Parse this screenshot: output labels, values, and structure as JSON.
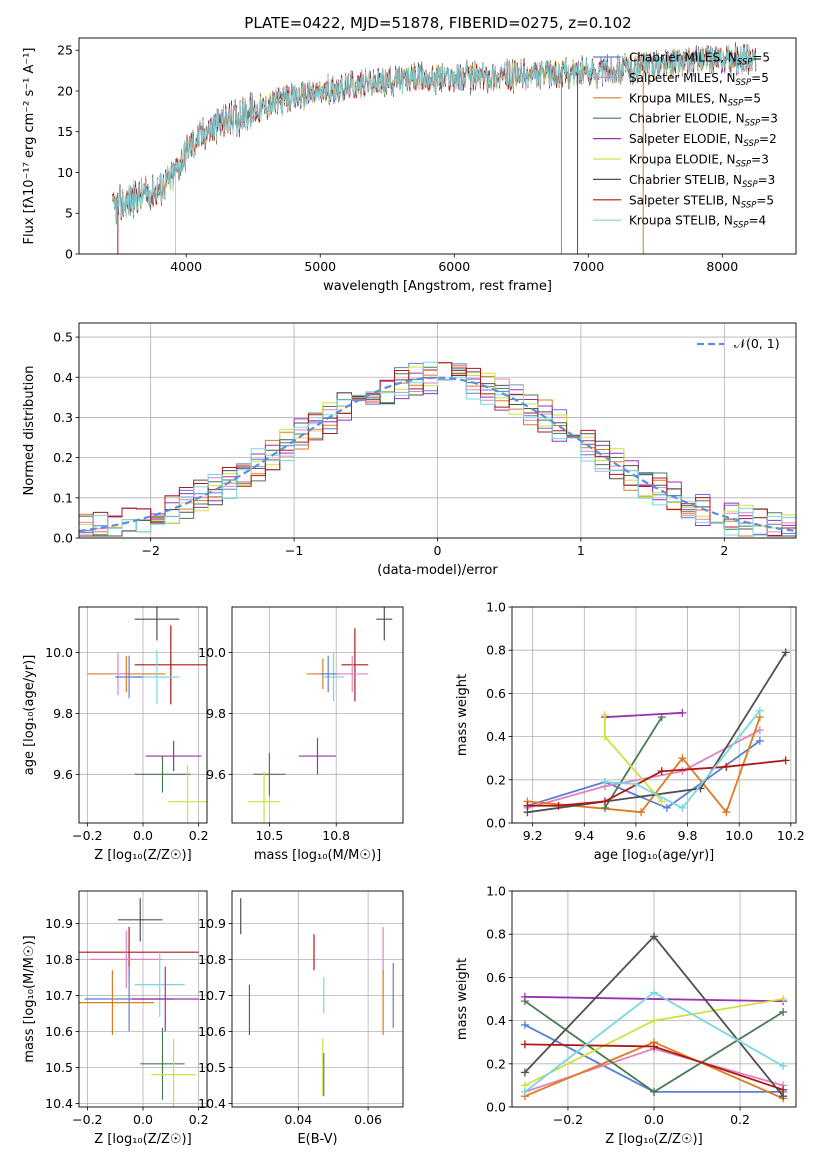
{
  "figure": {
    "title": "PLATE=0422, MJD=51878, FIBERID=0275, z=0.102"
  },
  "colors": {
    "chabrier_miles": "#5b7fd6",
    "salpeter_miles": "#e084c0",
    "kroupa_miles": "#e07a20",
    "chabrier_elodie": "#4a7a50",
    "salpeter_elodie": "#9b30b0",
    "kroupa_elodie": "#d0e040",
    "chabrier_stelib": "#505050",
    "salpeter_stelib": "#b01818",
    "kroupa_stelib": "#78d8e0",
    "normal": "#5b8fe0"
  },
  "chart_data": [
    {
      "id": "spectrum",
      "type": "line",
      "xlabel": "wavelength [Angstrom, rest frame]",
      "ylabel": "Flux [fλ10⁻¹⁷ erg cm⁻² s⁻¹ A⁻¹]",
      "xlim": [
        3200,
        8550
      ],
      "ylim": [
        0,
        26.5
      ],
      "xticks": [
        4000,
        5000,
        6000,
        7000,
        8000
      ],
      "yticks": [
        0,
        5,
        10,
        15,
        20,
        25
      ],
      "grid": false,
      "legend_position": "right",
      "continuum": {
        "x": [
          3450,
          3600,
          3800,
          3900,
          4000,
          4100,
          4300,
          4500,
          4700,
          4900,
          5100,
          5300,
          5500,
          5700,
          5900,
          6100,
          6300,
          6500,
          6700,
          6900,
          7100,
          7300,
          7500,
          7700,
          7900,
          8100,
          8250
        ],
        "y": [
          5.5,
          6.8,
          8.0,
          9.5,
          12.5,
          14.5,
          16.5,
          17.5,
          18.8,
          19.5,
          20.2,
          20.8,
          21.2,
          21.5,
          21.6,
          21.7,
          21.8,
          21.9,
          22.0,
          22.2,
          22.5,
          22.8,
          23.2,
          23.6,
          23.8,
          23.9,
          24.0
        ]
      },
      "series": [
        {
          "name": "Chabrier MILES, N_SSP=5",
          "label": "Chabrier MILES, N",
          "sub": "SSP",
          "suffix": "=5",
          "color_key": "chabrier_miles"
        },
        {
          "name": "Salpeter MILES, N_SSP=5",
          "label": "Salpeter MILES, N",
          "sub": "SSP",
          "suffix": "=5",
          "color_key": "salpeter_miles"
        },
        {
          "name": "Kroupa MILES, N_SSP=5",
          "label": "Kroupa MILES, N",
          "sub": "SSP",
          "suffix": "=5",
          "color_key": "kroupa_miles"
        },
        {
          "name": "Chabrier ELODIE, N_SSP=3",
          "label": "Chabrier ELODIE, N",
          "sub": "SSP",
          "suffix": "=3",
          "color_key": "chabrier_elodie"
        },
        {
          "name": "Salpeter ELODIE, N_SSP=2",
          "label": "Salpeter ELODIE, N",
          "sub": "SSP",
          "suffix": "=2",
          "color_key": "salpeter_elodie"
        },
        {
          "name": "Kroupa ELODIE, N_SSP=3",
          "label": "Kroupa ELODIE, N",
          "sub": "SSP",
          "suffix": "=3",
          "color_key": "kroupa_elodie"
        },
        {
          "name": "Chabrier STELIB, N_SSP=3",
          "label": "Chabrier STELIB, N",
          "sub": "SSP",
          "suffix": "=3",
          "color_key": "chabrier_stelib"
        },
        {
          "name": "Salpeter STELIB, N_SSP=5",
          "label": "Salpeter STELIB, N",
          "sub": "SSP",
          "suffix": "=5",
          "color_key": "salpeter_stelib"
        },
        {
          "name": "Kroupa STELIB, N_SSP=4",
          "label": "Kroupa STELIB, N",
          "sub": "SSP",
          "suffix": "=4",
          "color_key": "kroupa_stelib"
        }
      ],
      "drops": [
        {
          "x": 3490,
          "color_key": "salpeter_stelib"
        },
        {
          "x": 3920,
          "color_key": "kroupa_elodie"
        },
        {
          "x": 6800,
          "color_key": "kroupa_miles"
        },
        {
          "x": 6920,
          "color_key": "chabrier_stelib"
        },
        {
          "x": 7410,
          "color_key": "kroupa_miles"
        }
      ]
    },
    {
      "id": "residuals",
      "type": "bar",
      "xlabel": "(data-model)/error",
      "ylabel": "Normed distribution",
      "xlim": [
        -2.5,
        2.5
      ],
      "ylim": [
        0,
        0.535
      ],
      "xticks": [
        -2,
        -1,
        0,
        1,
        2
      ],
      "yticks": [
        0.0,
        0.1,
        0.2,
        0.3,
        0.4,
        0.5
      ],
      "grid": true,
      "bin_width": 0.1,
      "legend_position": "top-right",
      "reference_curve": {
        "name": "N(0,1)",
        "label": "𝒩(0, 1)",
        "mean": 0,
        "sigma": 1,
        "style": "dashed"
      }
    },
    {
      "id": "age-vs-z",
      "type": "scatter",
      "xlabel": "Z [log₁₀(Z/Z☉)]",
      "ylabel": "age  [log₁₀(age/yr)]",
      "xlim": [
        -0.23,
        0.23
      ],
      "ylim": [
        9.44,
        10.15
      ],
      "xticks": [
        -0.2,
        0.0,
        0.2
      ],
      "yticks": [
        9.6,
        9.8,
        10.0
      ],
      "grid": true,
      "points": [
        {
          "color_key": "chabrier_stelib",
          "x": 0.05,
          "xerr": 0.08,
          "y": 10.11,
          "yerr": 0.07
        },
        {
          "color_key": "salpeter_stelib",
          "x": 0.1,
          "xerr": 0.13,
          "y": 9.96,
          "yerr": 0.13
        },
        {
          "color_key": "kroupa_miles",
          "x": -0.06,
          "xerr": 0.14,
          "y": 9.93,
          "yerr": 0.06
        },
        {
          "color_key": "salpeter_miles",
          "x": -0.09,
          "xerr": 0.03,
          "y": 9.93,
          "yerr": 0.07
        },
        {
          "color_key": "kroupa_stelib",
          "x": 0.05,
          "xerr": 0.08,
          "y": 9.92,
          "yerr": 0.09
        },
        {
          "color_key": "chabrier_miles",
          "x": -0.05,
          "xerr": 0.05,
          "y": 9.92,
          "yerr": 0.07
        },
        {
          "color_key": "salpeter_elodie",
          "x": 0.11,
          "xerr": 0.1,
          "y": 9.66,
          "yerr": 0.05
        },
        {
          "color_key": "chabrier_elodie",
          "x": 0.07,
          "xerr": 0.1,
          "y": 9.6,
          "yerr": 0.06
        },
        {
          "color_key": "kroupa_elodie",
          "x": 0.16,
          "xerr": 0.07,
          "y": 9.51,
          "yerr": 0.12
        }
      ]
    },
    {
      "id": "age-vs-mass",
      "type": "scatter",
      "xlabel": "mass [log₁₀(M/M☉)]",
      "ylabel": "",
      "xlim": [
        10.36,
        11.0
      ],
      "ylim": [
        9.44,
        10.15
      ],
      "xticks": [
        10.5,
        10.75
      ],
      "yticks": [
        9.6,
        9.8,
        10.0
      ],
      "grid": true,
      "points": [
        {
          "color_key": "chabrier_stelib",
          "x": 10.93,
          "xerr": 0.03,
          "y": 10.11,
          "yerr": 0.07
        },
        {
          "color_key": "salpeter_stelib",
          "x": 10.82,
          "xerr": 0.05,
          "y": 9.96,
          "yerr": 0.12
        },
        {
          "color_key": "kroupa_miles",
          "x": 10.7,
          "xerr": 0.06,
          "y": 9.93,
          "yerr": 0.05
        },
        {
          "color_key": "salpeter_miles",
          "x": 10.81,
          "xerr": 0.06,
          "y": 9.93,
          "yerr": 0.06
        },
        {
          "color_key": "kroupa_stelib",
          "x": 10.74,
          "xerr": 0.04,
          "y": 9.92,
          "yerr": 0.08
        },
        {
          "color_key": "chabrier_miles",
          "x": 10.72,
          "xerr": 0.03,
          "y": 9.93,
          "yerr": 0.06
        },
        {
          "color_key": "salpeter_elodie",
          "x": 10.68,
          "xerr": 0.07,
          "y": 9.66,
          "yerr": 0.06
        },
        {
          "color_key": "chabrier_elodie",
          "x": 10.5,
          "xerr": 0.06,
          "y": 9.6,
          "yerr": 0.07
        },
        {
          "color_key": "kroupa_elodie",
          "x": 10.48,
          "xerr": 0.06,
          "y": 9.51,
          "yerr": 0.1
        }
      ]
    },
    {
      "id": "weight-vs-age",
      "type": "line",
      "xlabel": "age  [log₁₀(age/yr)]",
      "ylabel": "mass weight",
      "xlim": [
        9.12,
        10.22
      ],
      "ylim": [
        0,
        1.0
      ],
      "xticks": [
        9.2,
        9.4,
        9.6,
        9.8,
        10.0,
        10.2
      ],
      "yticks": [
        0.0,
        0.2,
        0.4,
        0.6,
        0.8,
        1.0
      ],
      "grid": true,
      "series": [
        {
          "color_key": "chabrier_miles",
          "x": [
            9.18,
            9.48,
            9.72,
            10.08
          ],
          "y": [
            0.08,
            0.19,
            0.07,
            0.38
          ]
        },
        {
          "color_key": "salpeter_miles",
          "x": [
            9.18,
            9.48,
            9.78,
            10.08
          ],
          "y": [
            0.07,
            0.17,
            0.24,
            0.43
          ]
        },
        {
          "color_key": "kroupa_miles",
          "x": [
            9.18,
            9.62,
            9.78,
            9.95,
            10.08
          ],
          "y": [
            0.1,
            0.05,
            0.3,
            0.05,
            0.49
          ]
        },
        {
          "color_key": "chabrier_elodie",
          "x": [
            9.48,
            9.7
          ],
          "y": [
            0.07,
            0.49
          ]
        },
        {
          "color_key": "salpeter_elodie",
          "x": [
            9.48,
            9.78
          ],
          "y": [
            0.49,
            0.51
          ]
        },
        {
          "color_key": "kroupa_elodie",
          "x": [
            9.48,
            9.48,
            9.7
          ],
          "y": [
            0.5,
            0.4,
            0.1
          ]
        },
        {
          "color_key": "chabrier_stelib",
          "x": [
            9.18,
            9.85,
            10.18
          ],
          "y": [
            0.05,
            0.16,
            0.79
          ]
        },
        {
          "color_key": "salpeter_stelib",
          "x": [
            9.18,
            9.3,
            9.48,
            9.7,
            9.95,
            10.18
          ],
          "y": [
            0.08,
            0.08,
            0.1,
            0.24,
            0.26,
            0.29
          ]
        },
        {
          "color_key": "kroupa_stelib",
          "x": [
            9.48,
            9.6,
            9.78,
            10.08
          ],
          "y": [
            0.19,
            0.18,
            0.07,
            0.52
          ]
        }
      ]
    },
    {
      "id": "mass-vs-z",
      "type": "scatter",
      "xlabel": "Z [log₁₀(Z/Z☉)]",
      "ylabel": "mass [log₁₀(M/M☉)]",
      "xlim": [
        -0.23,
        0.23
      ],
      "ylim": [
        10.39,
        10.99
      ],
      "xticks": [
        -0.2,
        0.0,
        0.2
      ],
      "yticks": [
        10.4,
        10.5,
        10.6,
        10.7,
        10.8,
        10.9
      ],
      "grid": true,
      "points": [
        {
          "color_key": "chabrier_stelib",
          "x": -0.01,
          "xerr": 0.08,
          "y": 10.91,
          "yerr": 0.06
        },
        {
          "color_key": "salpeter_stelib",
          "x": -0.05,
          "xerr": 0.25,
          "y": 10.82,
          "yerr": 0.07
        },
        {
          "color_key": "salpeter_miles",
          "x": -0.06,
          "xerr": 0.13,
          "y": 10.8,
          "yerr": 0.08
        },
        {
          "color_key": "kroupa_stelib",
          "x": 0.06,
          "xerr": 0.09,
          "y": 10.73,
          "yerr": 0.09
        },
        {
          "color_key": "chabrier_miles",
          "x": -0.05,
          "xerr": 0.16,
          "y": 10.69,
          "yerr": 0.09
        },
        {
          "color_key": "salpeter_elodie",
          "x": 0.08,
          "xerr": 0.12,
          "y": 10.69,
          "yerr": 0.09
        },
        {
          "color_key": "kroupa_miles",
          "x": -0.11,
          "xerr": 0.15,
          "y": 10.68,
          "yerr": 0.09
        },
        {
          "color_key": "chabrier_elodie",
          "x": 0.07,
          "xerr": 0.08,
          "y": 10.51,
          "yerr": 0.1
        },
        {
          "color_key": "kroupa_elodie",
          "x": 0.11,
          "xerr": 0.08,
          "y": 10.48,
          "yerr": 0.1
        }
      ]
    },
    {
      "id": "mass-vs-ebv",
      "type": "scatter",
      "xlabel": "E(B-V)",
      "ylabel": "",
      "xlim": [
        0.021,
        0.07
      ],
      "ylim": [
        10.39,
        10.99
      ],
      "xticks": [
        0.04,
        0.06
      ],
      "yticks": [
        10.4,
        10.5,
        10.6,
        10.7,
        10.8,
        10.9
      ],
      "grid": true,
      "points": [
        {
          "color_key": "chabrier_stelib",
          "x": 0.0235,
          "xerr": 0,
          "y": 10.92,
          "yerr": 0.05
        },
        {
          "color_key": "salpeter_stelib",
          "x": 0.0445,
          "xerr": 0,
          "y": 10.82,
          "yerr": 0.05
        },
        {
          "color_key": "salpeter_miles",
          "x": 0.0643,
          "xerr": 0,
          "y": 10.82,
          "yerr": 0.07
        },
        {
          "color_key": "kroupa_stelib",
          "x": 0.0473,
          "xerr": 0,
          "y": 10.7,
          "yerr": 0.05
        },
        {
          "color_key": "chabrier_miles",
          "x": 0.0672,
          "xerr": 0,
          "y": 10.7,
          "yerr": 0.09
        },
        {
          "color_key": "salpeter_elodie",
          "x": 0.026,
          "xerr": 0,
          "y": 10.66,
          "yerr": 0.07
        },
        {
          "color_key": "kroupa_miles",
          "x": 0.0643,
          "xerr": 0,
          "y": 10.68,
          "yerr": 0.09
        },
        {
          "color_key": "chabrier_elodie",
          "x": 0.0473,
          "xerr": 0,
          "y": 10.48,
          "yerr": 0.06
        },
        {
          "color_key": "kroupa_elodie",
          "x": 0.047,
          "xerr": 0,
          "y": 10.5,
          "yerr": 0.08
        }
      ]
    },
    {
      "id": "weight-vs-z",
      "type": "line",
      "xlabel": "Z [log₁₀(Z/Z☉)]",
      "ylabel": "mass weight",
      "xlim": [
        -0.33,
        0.33
      ],
      "ylim": [
        0,
        1.0
      ],
      "xticks": [
        -0.2,
        0.0,
        0.2
      ],
      "yticks": [
        0.0,
        0.2,
        0.4,
        0.6,
        0.8,
        1.0
      ],
      "grid": true,
      "series": [
        {
          "color_key": "chabrier_miles",
          "x": [
            -0.3,
            0.0,
            0.3
          ],
          "y": [
            0.38,
            0.07,
            0.07
          ]
        },
        {
          "color_key": "salpeter_miles",
          "x": [
            -0.3,
            0.0,
            0.3
          ],
          "y": [
            0.07,
            0.27,
            0.1
          ]
        },
        {
          "color_key": "kroupa_miles",
          "x": [
            -0.3,
            0.0,
            0.3
          ],
          "y": [
            0.05,
            0.3,
            0.04
          ]
        },
        {
          "color_key": "chabrier_elodie",
          "x": [
            -0.3,
            0.0,
            0.3
          ],
          "y": [
            0.49,
            0.07,
            0.44
          ]
        },
        {
          "color_key": "salpeter_elodie",
          "x": [
            -0.3,
            0.3
          ],
          "y": [
            0.51,
            0.49
          ]
        },
        {
          "color_key": "kroupa_elodie",
          "x": [
            -0.3,
            0.0,
            0.3
          ],
          "y": [
            0.1,
            0.4,
            0.5
          ]
        },
        {
          "color_key": "chabrier_stelib",
          "x": [
            -0.3,
            0.0,
            0.3
          ],
          "y": [
            0.16,
            0.79,
            0.05
          ]
        },
        {
          "color_key": "salpeter_stelib",
          "x": [
            -0.3,
            0.0,
            0.3
          ],
          "y": [
            0.29,
            0.28,
            0.08
          ]
        },
        {
          "color_key": "kroupa_stelib",
          "x": [
            -0.3,
            0.0,
            0.3
          ],
          "y": [
            0.07,
            0.53,
            0.19
          ]
        }
      ]
    }
  ]
}
